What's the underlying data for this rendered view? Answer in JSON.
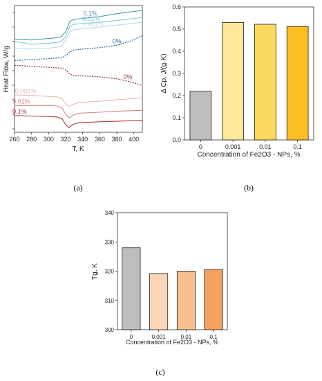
{
  "chart_data": [
    {
      "panel": "(a)",
      "type": "line",
      "xlabel": "T, K",
      "ylabel": "Heat Flow, W/g",
      "xlim": [
        260,
        410
      ],
      "xticks": [
        260,
        280,
        300,
        320,
        340,
        360,
        380,
        400
      ],
      "grid": false,
      "series": [
        {
          "name": "0.1%",
          "color": "#4a9bb5",
          "dashed": false,
          "transition": 322,
          "step": "up",
          "label_x": 349,
          "x": [
            260,
            280,
            300,
            310,
            315,
            320,
            325,
            330,
            340,
            360,
            380,
            410
          ],
          "y": [
            0.55,
            0.53,
            0.56,
            0.58,
            0.6,
            0.7,
            0.92,
            0.96,
            0.98,
            1.02,
            1.08,
            1.15
          ]
        },
        {
          "name": "0.01%",
          "color": "#8ac7d6",
          "dashed": false,
          "transition": 322,
          "step": "up",
          "label_x": 350,
          "x": [
            260,
            280,
            300,
            310,
            315,
            320,
            325,
            330,
            340,
            360,
            380,
            410
          ],
          "y": [
            0.5,
            0.44,
            0.46,
            0.48,
            0.5,
            0.6,
            0.82,
            0.86,
            0.87,
            0.9,
            0.94,
            1.0
          ]
        },
        {
          "name": "0.001%",
          "color": "#b7dde6",
          "dashed": false,
          "transition": 323,
          "step": "up",
          "label_x": 352,
          "x": [
            260,
            280,
            300,
            310,
            315,
            320,
            325,
            330,
            340,
            360,
            380,
            410
          ],
          "y": [
            0.36,
            0.34,
            0.36,
            0.38,
            0.4,
            0.52,
            0.7,
            0.74,
            0.77,
            0.8,
            0.84,
            0.9
          ]
        },
        {
          "name": "0%",
          "color": "#1a6fa0",
          "dashed": true,
          "transition": 325,
          "step": "up",
          "label_x": 380,
          "x": [
            260,
            280,
            300,
            315,
            320,
            325,
            330,
            340,
            360,
            380,
            395,
            410
          ],
          "y": [
            0.1,
            0.12,
            0.14,
            0.16,
            0.2,
            0.28,
            0.32,
            0.34,
            0.37,
            0.42,
            0.5,
            0.62
          ]
        },
        {
          "name": "0%",
          "color": "#9b3a3a",
          "dashed": true,
          "transition": 325,
          "step": "down",
          "label_x": 393,
          "x": [
            260,
            280,
            300,
            315,
            320,
            325,
            330,
            340,
            360,
            380,
            395,
            410
          ],
          "y": [
            0.0,
            -0.02,
            -0.04,
            -0.06,
            -0.1,
            -0.18,
            -0.22,
            -0.22,
            -0.24,
            -0.28,
            -0.34,
            -0.42
          ]
        },
        {
          "name": "0.001%",
          "color": "#e8b5b0",
          "dashed": false,
          "transition": 322,
          "step": "down",
          "label_x": 273,
          "x": [
            260,
            280,
            300,
            310,
            316,
            320,
            324,
            328,
            335,
            360,
            380,
            410
          ],
          "y": [
            -0.62,
            -0.63,
            -0.65,
            -0.66,
            -0.7,
            -0.8,
            -0.86,
            -0.82,
            -0.78,
            -0.75,
            -0.72,
            -0.68
          ]
        },
        {
          "name": "0.01%",
          "color": "#d48a86",
          "dashed": false,
          "transition": 322,
          "step": "down",
          "label_x": 268,
          "x": [
            260,
            280,
            300,
            310,
            316,
            320,
            324,
            328,
            335,
            360,
            380,
            410
          ],
          "y": [
            -0.84,
            -0.84,
            -0.84,
            -0.85,
            -0.9,
            -1.02,
            -1.1,
            -1.05,
            -1.0,
            -0.98,
            -0.96,
            -0.94
          ]
        },
        {
          "name": "0.1%",
          "color": "#b03a3a",
          "dashed": false,
          "transition": 322,
          "step": "down",
          "label_x": 266,
          "x": [
            260,
            280,
            300,
            310,
            316,
            320,
            324,
            328,
            335,
            360,
            380,
            410
          ],
          "y": [
            -1.05,
            -1.06,
            -1.07,
            -1.08,
            -1.12,
            -1.24,
            -1.3,
            -1.24,
            -1.2,
            -1.18,
            -1.17,
            -1.15
          ]
        }
      ]
    },
    {
      "panel": "(b)",
      "type": "bar",
      "xlabel": "Concentration of Fe2O3 - NPs, %",
      "ylabel": "Δ Cp, J/(g·K)",
      "categories": [
        "0",
        "0.001",
        "0.01",
        "0.1"
      ],
      "values": [
        0.22,
        0.53,
        0.522,
        0.512
      ],
      "colors": [
        "#bdbdbd",
        "#fde79a",
        "#fdd85e",
        "#fbbf24"
      ],
      "ylim": [
        0,
        0.6
      ],
      "yticks": [
        "0.0",
        "0.1",
        "0.2",
        "0.3",
        "0.4",
        "0.5",
        "0.6"
      ],
      "grid": false
    },
    {
      "panel": "(c)",
      "type": "bar",
      "xlabel": "Concentration of Fe2O3 - NPs, %",
      "ylabel": "Tg, K",
      "categories": [
        "0",
        "0.001",
        "0.01",
        "0.1"
      ],
      "values": [
        328.0,
        319.2,
        320.0,
        320.6
      ],
      "colors": [
        "#bdbdbd",
        "#f9d6b8",
        "#f8bf8e",
        "#f5a05e"
      ],
      "ylim": [
        300,
        340
      ],
      "yticks": [
        "300",
        "310",
        "320",
        "330",
        "340"
      ],
      "grid": false
    }
  ]
}
